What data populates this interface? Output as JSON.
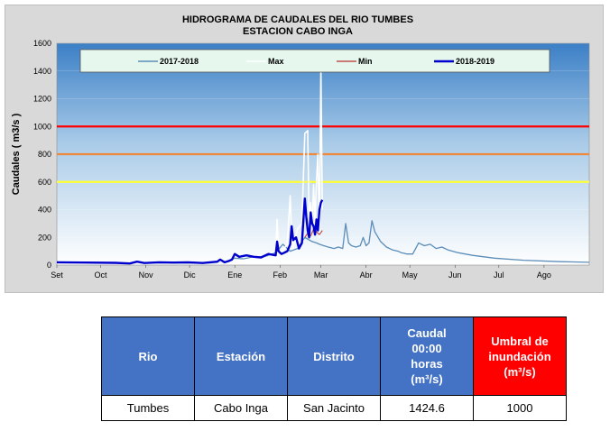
{
  "chart_data": {
    "type": "line",
    "title": "HIDROGRAMA DE CAUDALES DEL RIO  TUMBES",
    "subtitle": "ESTACION  CABO INGA",
    "ylabel": "Caudales ( m3/s )",
    "xlabel": "",
    "ylim": [
      0,
      1600
    ],
    "yticks": [
      0,
      200,
      400,
      600,
      800,
      1000,
      1200,
      1400,
      1600
    ],
    "xlim": [
      0,
      365
    ],
    "months": [
      "Set",
      "Oct",
      "Nov",
      "Dic",
      "Ene",
      "Feb",
      "Mar",
      "Abr",
      "May",
      "Jun",
      "Jul",
      "Ago"
    ],
    "month_days": [
      0,
      30,
      61,
      91,
      122,
      153,
      181,
      212,
      242,
      273,
      303,
      334
    ],
    "legend_position": "top",
    "threshold_lines": [
      {
        "value": 1000,
        "color": "#ff0000"
      },
      {
        "value": 800,
        "color": "#f0883a"
      },
      {
        "value": 600,
        "color": "#ffff33"
      }
    ],
    "series": [
      {
        "name": "2017-2018",
        "color": "#5b8db8",
        "x": [
          0,
          20,
          40,
          60,
          80,
          100,
          115,
          122,
          128,
          135,
          140,
          145,
          150,
          155,
          160,
          165,
          170,
          175,
          178,
          180,
          183,
          186,
          190,
          193,
          196,
          198,
          200,
          202,
          205,
          208,
          210,
          212,
          214,
          216,
          218,
          222,
          226,
          230,
          234,
          236,
          238,
          240,
          244,
          248,
          252,
          256,
          260,
          264,
          268,
          275,
          285,
          300,
          320,
          345,
          365
        ],
        "y": [
          15,
          15,
          14,
          14,
          14,
          15,
          18,
          50,
          45,
          60,
          55,
          70,
          90,
          150,
          100,
          120,
          200,
          170,
          160,
          150,
          140,
          130,
          120,
          130,
          120,
          300,
          160,
          140,
          130,
          140,
          200,
          140,
          160,
          320,
          240,
          170,
          130,
          110,
          100,
          90,
          85,
          80,
          80,
          160,
          140,
          150,
          120,
          130,
          110,
          90,
          70,
          50,
          35,
          25,
          20
        ]
      },
      {
        "name": "Max",
        "color": "#ffffff",
        "x": [
          0,
          60,
          120,
          130,
          140,
          150,
          151,
          152,
          153,
          158,
          160,
          161,
          162,
          165,
          168,
          170,
          172,
          173,
          174,
          175,
          176,
          177,
          178,
          179,
          180,
          181,
          182
        ],
        "y": [
          15,
          15,
          20,
          40,
          60,
          100,
          330,
          120,
          80,
          150,
          500,
          200,
          120,
          260,
          300,
          950,
          970,
          300,
          450,
          250,
          580,
          300,
          600,
          800,
          200,
          1430,
          400
        ]
      },
      {
        "name": "Min",
        "color": "#c0504d",
        "x": [
          170,
          172,
          174,
          176,
          178,
          180,
          182
        ],
        "y": [
          200,
          230,
          210,
          260,
          240,
          220,
          250
        ]
      },
      {
        "name": "2018-2019",
        "color": "#0000cc",
        "x": [
          0,
          20,
          40,
          50,
          55,
          60,
          70,
          80,
          90,
          100,
          110,
          112,
          115,
          118,
          120,
          122,
          125,
          130,
          135,
          140,
          145,
          150,
          151,
          152,
          154,
          156,
          158,
          160,
          161,
          162,
          164,
          166,
          168,
          170,
          171,
          172,
          173,
          174,
          175,
          176,
          177,
          178,
          179,
          180,
          181,
          182
        ],
        "y": [
          20,
          18,
          16,
          12,
          25,
          15,
          20,
          18,
          20,
          15,
          25,
          40,
          20,
          30,
          40,
          80,
          60,
          70,
          60,
          55,
          80,
          70,
          170,
          100,
          80,
          90,
          100,
          150,
          280,
          180,
          200,
          120,
          160,
          480,
          350,
          250,
          200,
          380,
          300,
          280,
          220,
          330,
          250,
          400,
          450,
          470
        ]
      }
    ]
  },
  "table": {
    "headers": {
      "rio": "Rio",
      "estacion": "Estación",
      "distrito": "Distrito",
      "caudal_line1": "Caudal",
      "caudal_line2": "00:00",
      "caudal_line3": "horas",
      "caudal_line4": "(m³/s)",
      "umbral_line1": "Umbral de",
      "umbral_line2": "inundación",
      "umbral_line3": "(m³/s)"
    },
    "row": {
      "rio": "Tumbes",
      "estacion": "Cabo Inga",
      "distrito": "San Jacinto",
      "caudal": "1424.6",
      "umbral": "1000"
    }
  }
}
